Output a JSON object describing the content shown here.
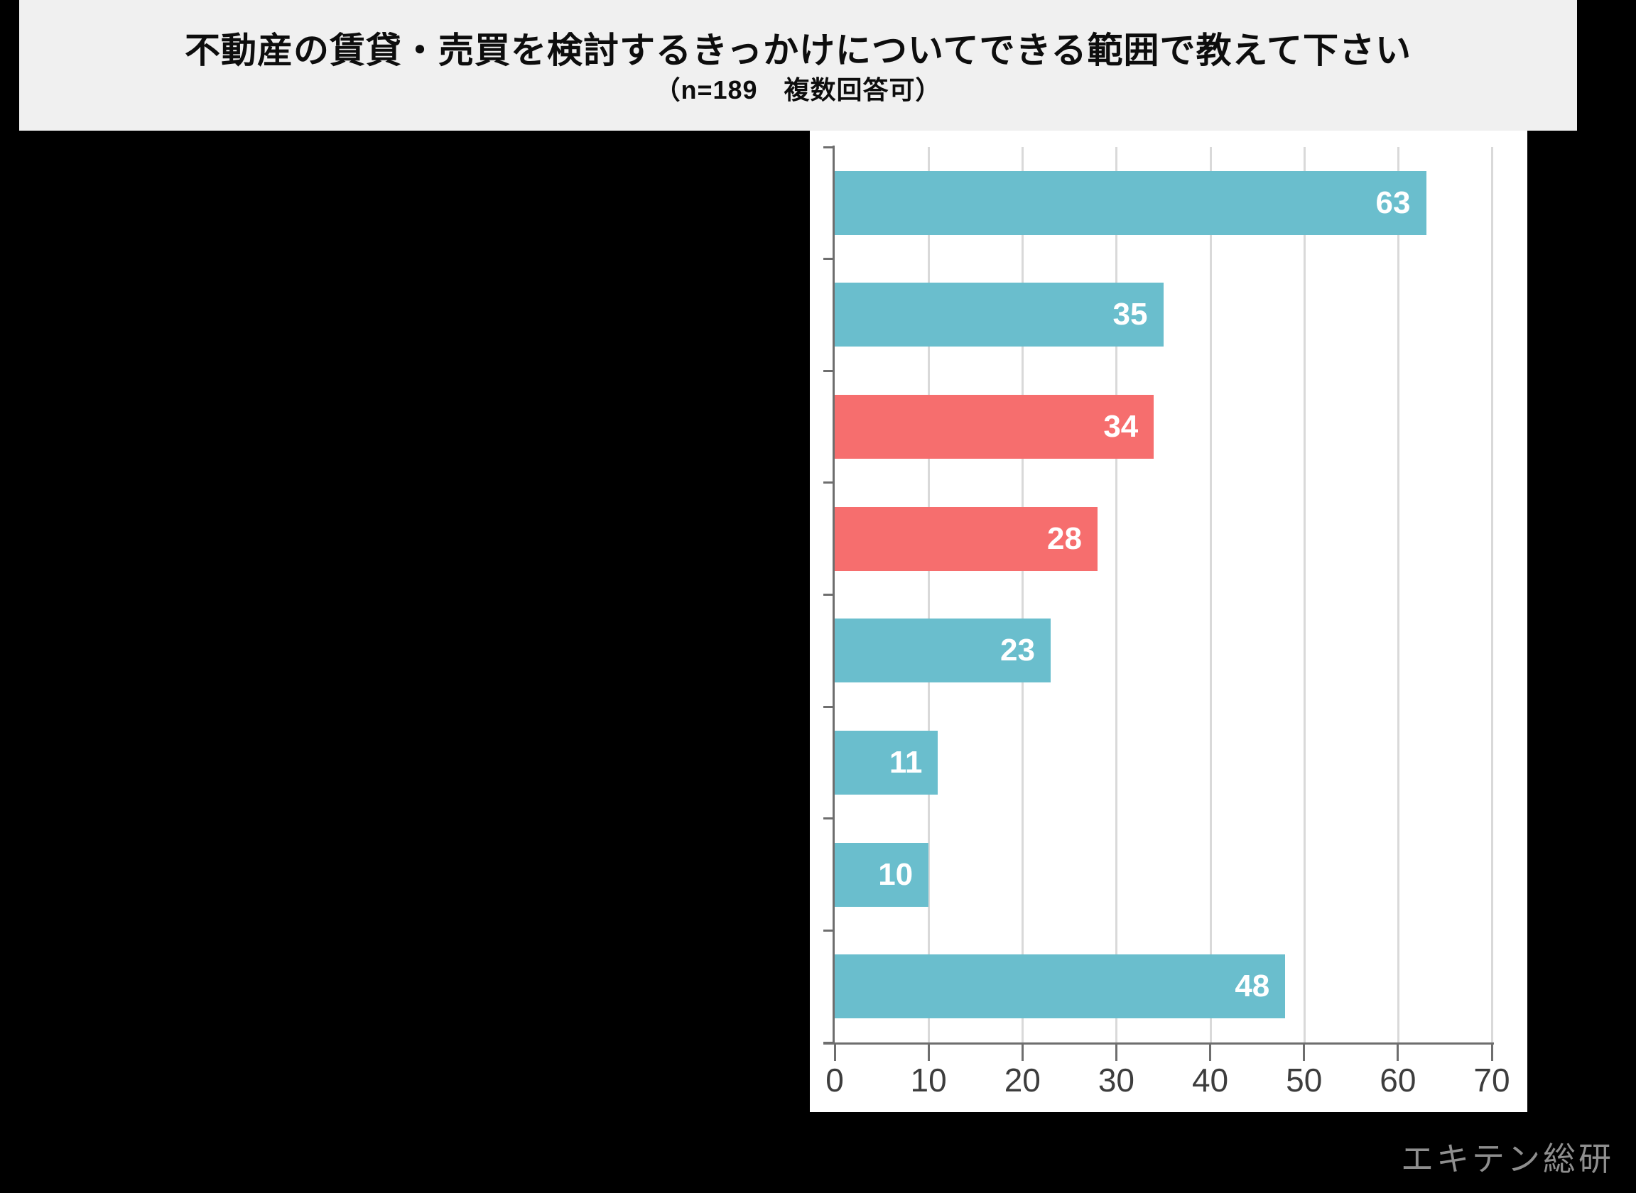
{
  "watermark": "エキテン総研",
  "colors": {
    "background": "#000000",
    "band_bg": "#F0F0F0",
    "panel_bg": "#FFFFFF",
    "teal": "#6ABECD",
    "red": "#F66E6E",
    "axis": "#6E6E6E",
    "gridline": "#D9D9D9",
    "tick_label": "#3D3D3D",
    "value_label": "#FFFFFF",
    "watermark": "#8E8E8E"
  },
  "chart_data": {
    "type": "bar",
    "orientation": "horizontal",
    "title": "不動産の賃貸・売買を検討するきっかけについてできる範囲で教えて下さい",
    "subtitle": "（n=189　複数回答可）",
    "categories": [
      "",
      "",
      "",
      "",
      "",
      "",
      "",
      ""
    ],
    "values": [
      63,
      35,
      34,
      28,
      23,
      11,
      10,
      48
    ],
    "bar_colors": [
      "#6ABECD",
      "#6ABECD",
      "#F66E6E",
      "#F66E6E",
      "#6ABECD",
      "#6ABECD",
      "#6ABECD",
      "#6ABECD"
    ],
    "data_labels": [
      63,
      35,
      34,
      28,
      23,
      11,
      10,
      48
    ],
    "data_label_position": "inside-end",
    "xlabel": "",
    "ylabel": "",
    "xlim": [
      0,
      70
    ],
    "x_ticks": [
      0,
      10,
      20,
      30,
      40,
      50,
      60,
      70
    ],
    "grid": true,
    "legend": false
  }
}
